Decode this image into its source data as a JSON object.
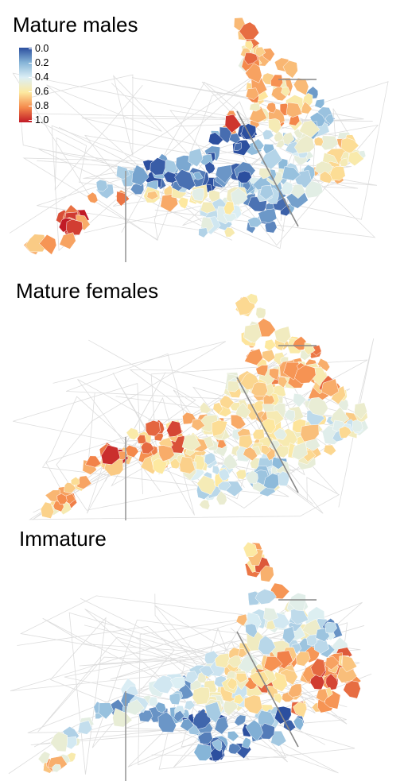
{
  "panels": [
    {
      "title": "Mature males",
      "values": [
        0.05,
        0.2,
        0.35,
        0.55,
        0.7,
        0.85,
        0.95,
        0.8,
        0.75,
        0.9,
        0.65,
        0.3,
        0.25,
        0.4,
        0.15,
        0.1,
        0.35,
        0.6,
        0.8,
        0.9,
        0.7,
        0.45,
        0.2,
        0.15
      ]
    },
    {
      "title": "Mature females",
      "values": [
        0.25,
        0.3,
        0.5,
        0.6,
        0.65,
        0.75,
        0.7,
        0.85,
        0.6,
        0.55,
        0.65,
        0.7,
        0.8,
        0.9,
        0.75,
        0.6,
        0.55,
        0.5,
        0.65,
        0.7,
        0.6,
        0.45,
        0.35,
        0.3
      ]
    },
    {
      "title": "Immature",
      "values": [
        0.1,
        0.2,
        0.3,
        0.6,
        0.75,
        0.85,
        0.9,
        0.8,
        0.7,
        0.65,
        0.4,
        0.25,
        0.15,
        0.1,
        0.3,
        0.5,
        0.7,
        0.8,
        0.6,
        0.4,
        0.2,
        0.1,
        0.15,
        0.25
      ]
    }
  ],
  "legend": {
    "labels": [
      "0.0",
      "0.2",
      "0.4",
      "0.6",
      "0.8",
      "1.0"
    ],
    "colors": [
      "#2c4f9f",
      "#86b5d8",
      "#dceff5",
      "#fde9a0",
      "#f58b4c",
      "#c11a26"
    ]
  }
}
